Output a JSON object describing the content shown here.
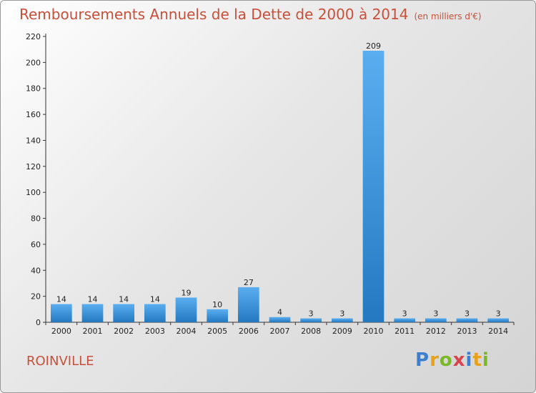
{
  "header": {
    "title": "Remboursements Annuels de la Dette de 2000 à 2014",
    "unit": "(en milliers d'€)"
  },
  "footer": {
    "city": "ROINVILLE",
    "logo_letters": [
      "P",
      "r",
      "o",
      "x",
      "i",
      "t",
      "i"
    ]
  },
  "colors": {
    "title": "#c8503a",
    "bar_top": "#5aaef0",
    "bar_bottom": "#2478c0",
    "axis": "#333333"
  },
  "chart_data": {
    "type": "bar",
    "title": "Remboursements Annuels de la Dette de 2000 à 2014",
    "subtitle": "(en milliers d'€)",
    "categories": [
      "2000",
      "2001",
      "2002",
      "2003",
      "2004",
      "2005",
      "2006",
      "2007",
      "2008",
      "2009",
      "2010",
      "2011",
      "2012",
      "2013",
      "2014"
    ],
    "values": [
      14,
      14,
      14,
      14,
      19,
      10,
      27,
      4,
      3,
      3,
      209,
      3,
      3,
      3,
      3
    ],
    "ylim": [
      0,
      220
    ],
    "yticks": [
      0,
      20,
      40,
      60,
      80,
      100,
      120,
      140,
      160,
      180,
      200,
      220
    ],
    "xlabel": "",
    "ylabel": "",
    "grid": false,
    "legend": "none"
  }
}
